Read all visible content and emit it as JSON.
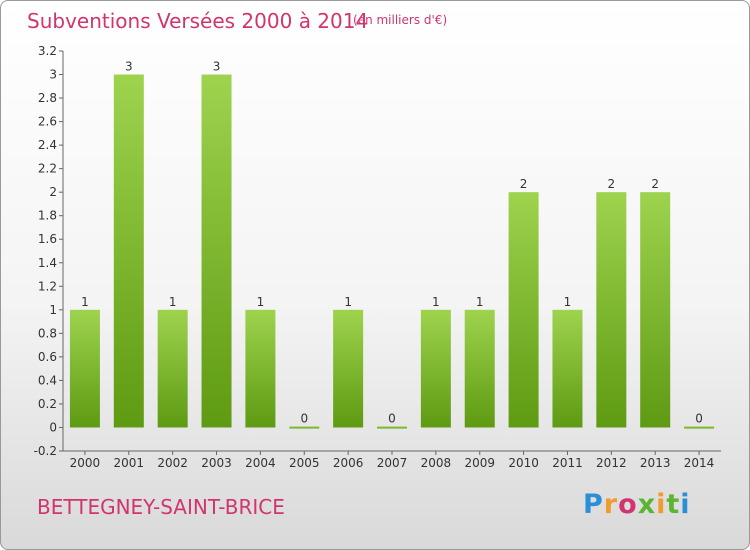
{
  "header": {
    "title": "Subventions Versées 2000 à 2014",
    "unit": "(en milliers d'€)"
  },
  "footer": {
    "commune": "BETTEGNEY-SAINT-BRICE",
    "logo": "Proxiti"
  },
  "colors": {
    "title": "#d1346f",
    "bar_top": "#9ed34e",
    "bar_bottom": "#5e9a12"
  },
  "chart_data": {
    "type": "bar",
    "title": "Subventions Versées 2000 à 2014",
    "xlabel": "",
    "ylabel": "",
    "categories": [
      "2000",
      "2001",
      "2002",
      "2003",
      "2004",
      "2005",
      "2006",
      "2007",
      "2008",
      "2009",
      "2010",
      "2011",
      "2012",
      "2013",
      "2014"
    ],
    "values": [
      1,
      3,
      1,
      3,
      1,
      0,
      1,
      0,
      1,
      1,
      2,
      1,
      2,
      2,
      0
    ],
    "value_labels": [
      "1",
      "3",
      "1",
      "3",
      "1",
      "0",
      "1",
      "0",
      "1",
      "1",
      "2",
      "1",
      "2",
      "2",
      "0"
    ],
    "yticks": [
      "-0.2",
      "0",
      "0.2",
      "0.4",
      "0.6",
      "0.8",
      "1",
      "1.2",
      "1.4",
      "1.6",
      "1.8",
      "2",
      "2.2",
      "2.4",
      "2.6",
      "2.8",
      "3",
      "3.2"
    ],
    "ylim": [
      -0.2,
      3.2
    ],
    "grid": false
  }
}
